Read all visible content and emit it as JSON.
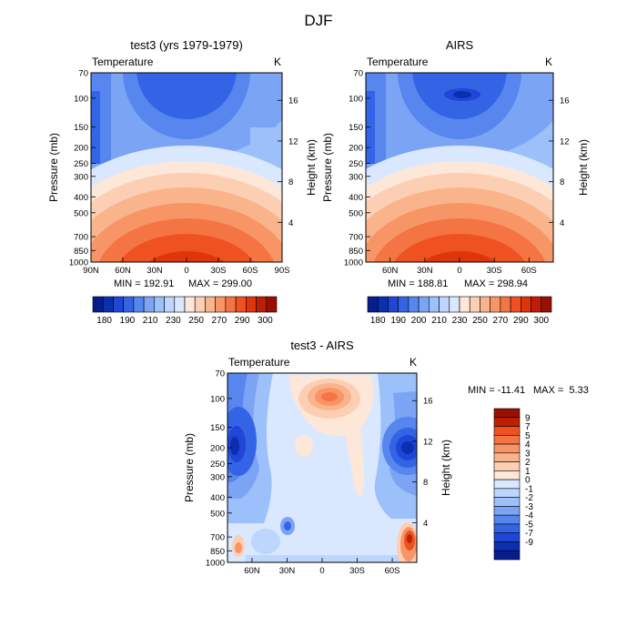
{
  "title": "DJF",
  "units": "K",
  "chart_data": [
    {
      "type": "heatmap",
      "id": "p1",
      "title": "test3 (yrs 1979-1979)",
      "variable": "Temperature",
      "units": "K",
      "ylabel_left": "Pressure (mb)",
      "ylabel_right": "Height (km)",
      "pressure_ticks": [
        "70",
        "100",
        "150",
        "200",
        "250",
        "300",
        "400",
        "500",
        "700",
        "850",
        "1000"
      ],
      "pressure_range": [
        70,
        1000
      ],
      "height_ticks": [
        "4",
        "8",
        "12",
        "16"
      ],
      "x_ticks": [
        "90N",
        "60N",
        "30N",
        "0",
        "30S",
        "60S",
        "90S"
      ],
      "latitude_range": [
        90,
        -90
      ],
      "min_label": "MIN = 192.91",
      "max_label": "MAX = 299.00",
      "min": 192.91,
      "max": 299.0,
      "colorbar_labels": [
        "180",
        "190",
        "210",
        "230",
        "250",
        "270",
        "290",
        "300"
      ]
    },
    {
      "type": "heatmap",
      "id": "p2",
      "title": "AIRS",
      "variable": "Temperature",
      "units": "K",
      "ylabel_left": "Pressure (mb)",
      "ylabel_right": "Height (km)",
      "pressure_ticks": [
        "70",
        "100",
        "150",
        "200",
        "250",
        "300",
        "400",
        "500",
        "700",
        "850",
        "1000"
      ],
      "pressure_range": [
        70,
        1000
      ],
      "height_ticks": [
        "4",
        "8",
        "12",
        "16"
      ],
      "x_ticks": [
        "60N",
        "30N",
        "0",
        "30S",
        "60S"
      ],
      "latitude_range": [
        81,
        -81
      ],
      "min_label": "MIN = 188.81",
      "max_label": "MAX = 298.94",
      "min": 188.81,
      "max": 298.94,
      "colorbar_labels": [
        "180",
        "190",
        "200",
        "210",
        "230",
        "250",
        "270",
        "290",
        "300"
      ]
    },
    {
      "type": "heatmap",
      "id": "p3",
      "title": "test3 - AIRS",
      "variable": "Temperature",
      "units": "K",
      "ylabel_left": "Pressure (mb)",
      "ylabel_right": "Height (km)",
      "pressure_ticks": [
        "70",
        "100",
        "150",
        "200",
        "250",
        "300",
        "400",
        "500",
        "700",
        "850",
        "1000"
      ],
      "pressure_range": [
        70,
        1000
      ],
      "height_ticks": [
        "4",
        "8",
        "12",
        "16"
      ],
      "x_ticks": [
        "60N",
        "30N",
        "0",
        "30S",
        "60S"
      ],
      "latitude_range": [
        81,
        -81
      ],
      "min_label": "MIN = -11.41",
      "max_label": "MAX =  5.33",
      "min": -11.41,
      "max": 5.33,
      "colorbar_labels": [
        "9",
        "7",
        "5",
        "4",
        "3",
        "2",
        "1",
        "0",
        "-1",
        "-2",
        "-3",
        "-4",
        "-5",
        "-7",
        "-9"
      ]
    }
  ],
  "palette": {
    "abs": [
      "#051e8c",
      "#0c2fb0",
      "#1f46d6",
      "#3464e6",
      "#5686ee",
      "#7ba4f4",
      "#9cc0fa",
      "#bcd6fd",
      "#d9e8fe",
      "#fde7d8",
      "#fccfb4",
      "#fab48c",
      "#f79566",
      "#f47443",
      "#ef5220",
      "#e0340c",
      "#c01e04",
      "#981002"
    ],
    "diff": [
      "#051e8c",
      "#0c2fb0",
      "#1f46d6",
      "#3464e6",
      "#5686ee",
      "#7ba4f4",
      "#9cc0fa",
      "#bcd6fd",
      "#d9e8fe",
      "#fde7d8",
      "#fccfb4",
      "#fab48c",
      "#f79566",
      "#f47443",
      "#ef5220",
      "#c01e04",
      "#981002"
    ]
  }
}
